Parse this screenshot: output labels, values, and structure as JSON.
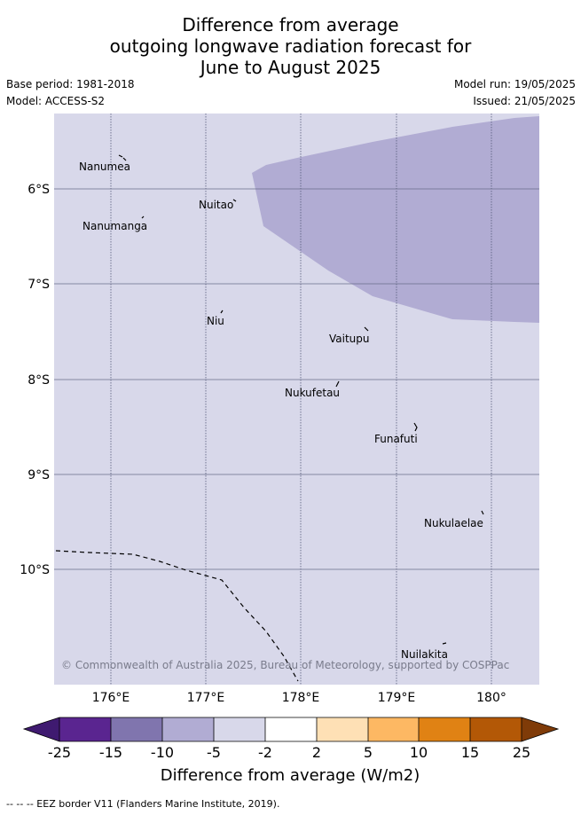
{
  "title": {
    "line1": "Difference from average",
    "line2": "outgoing longwave radiation forecast for",
    "line3": "June to August 2025"
  },
  "meta": {
    "base_period": "Base period: 1981-2018",
    "model": "Model: ACCESS-S2",
    "model_run": "Model run: 19/05/2025",
    "issued": "Issued: 21/05/2025"
  },
  "map": {
    "background_color": "#d8d8ea",
    "anomaly_color": "#b1acd3",
    "lon_range": [
      175.4,
      180.5
    ],
    "lat_range": [
      -11.2,
      -5.2
    ],
    "lon_ticks": [
      "176°E",
      "177°E",
      "178°E",
      "179°E",
      "180°"
    ],
    "lat_ticks": [
      "6°S",
      "7°S",
      "8°S",
      "9°S",
      "10°S"
    ],
    "islands": [
      {
        "name": "Nanumea"
      },
      {
        "name": "Nuitao"
      },
      {
        "name": "Nanumanga"
      },
      {
        "name": "Niu"
      },
      {
        "name": "Vaitupu"
      },
      {
        "name": "Nukufetau"
      },
      {
        "name": "Funafuti"
      },
      {
        "name": "Nukulaelae"
      },
      {
        "name": "Nuilakita"
      }
    ],
    "copyright": "© Commonwealth of Australia 2025, Bureau of Meteorology, supported by COSPPac"
  },
  "colorbar": {
    "ticks": [
      "-25",
      "-15",
      "-10",
      "-5",
      "-2",
      "2",
      "5",
      "10",
      "15",
      "25"
    ],
    "colors": [
      "#3f1a70",
      "#5a2590",
      "#8075ae",
      "#b1acd3",
      "#d8d8ea",
      "#ffffff",
      "#fee0b5",
      "#fdb863",
      "#e08214",
      "#b35806",
      "#7f3b08"
    ],
    "title": "Difference from average (W/m2)"
  },
  "footer": {
    "eez_note": "--  --  -- EEZ border V11 (Flanders Marine Institute, 2019)."
  }
}
